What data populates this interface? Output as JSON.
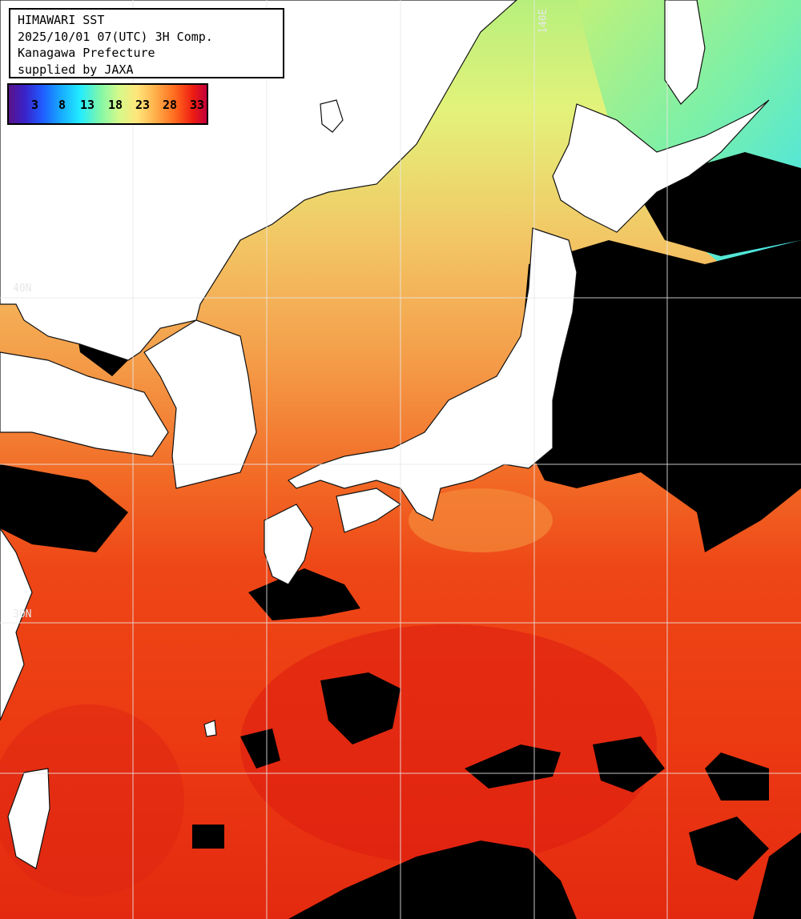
{
  "header": {
    "lines": [
      "HIMAWARI SST",
      "2025/10/01 07(UTC) 3H Comp.",
      "Kanagawa Prefecture",
      "supplied by JAXA"
    ]
  },
  "legend": {
    "ticks": [
      "3",
      "8",
      "13",
      "18",
      "23",
      "28",
      "33"
    ]
  },
  "axis_labels": {
    "lon_140": "140E",
    "lat_upper": "40N",
    "lat_lower": "30N"
  },
  "colors": {
    "land": "#ffffff",
    "cloud": "#000000",
    "grid": "#ffffff",
    "warm_sea": "#ee3a10",
    "hot_sea": "#dc1c10",
    "mid_sea": "#f48a3a",
    "cool_sea": "#f2c060",
    "cold_sea": "#c9f07a",
    "very_cold_sea": "#49e8e0"
  }
}
